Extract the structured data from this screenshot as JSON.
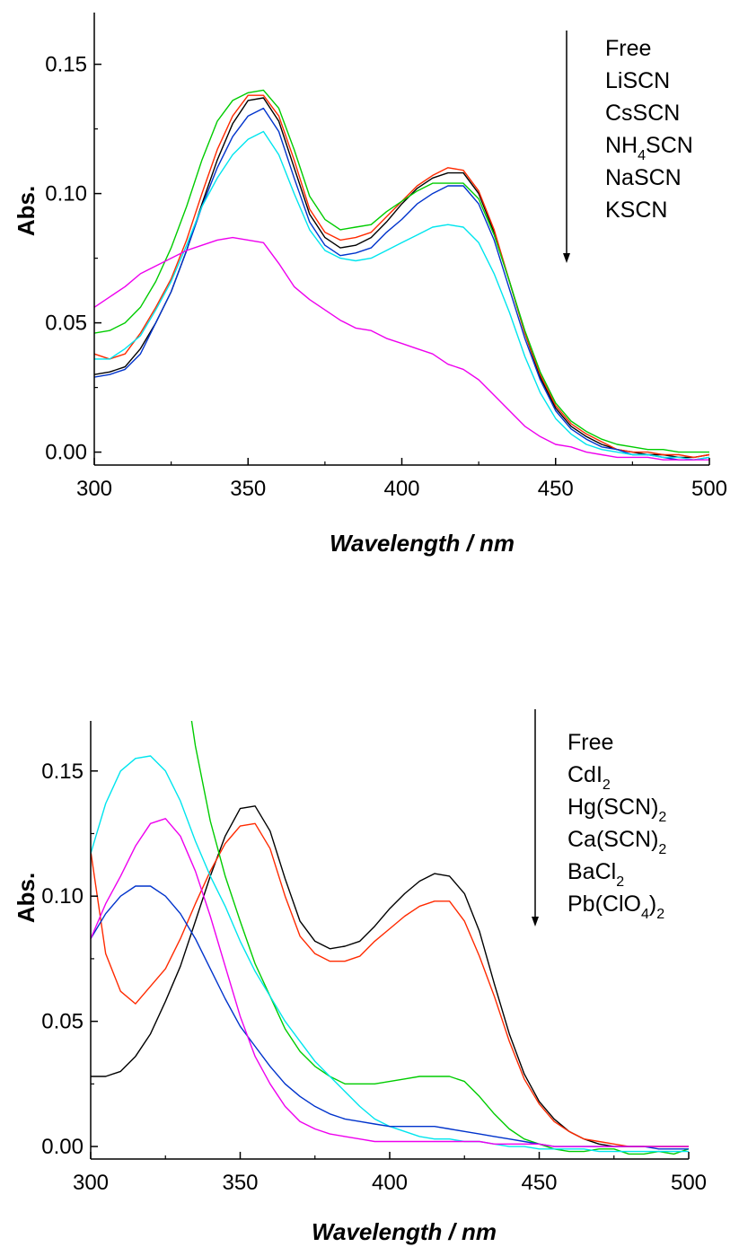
{
  "chart_data": [
    {
      "type": "line",
      "xlabel": "Wavelength / nm",
      "ylabel": "Abs.",
      "xlim": [
        300,
        500
      ],
      "ylim": [
        -0.005,
        0.17
      ],
      "x_ticks": [
        "300",
        "350",
        "400",
        "450",
        "500"
      ],
      "y_ticks": [
        "0.00",
        "0.05",
        "0.10",
        "0.15"
      ],
      "grid": false,
      "legend_position": "top-right",
      "legend": [
        {
          "text": "Free"
        },
        {
          "text": "LiSCN"
        },
        {
          "text": "CsSCN"
        },
        {
          "text": "NH",
          "sub": "4",
          "text2": "SCN"
        },
        {
          "text": "NaSCN"
        },
        {
          "text": "KSCN"
        }
      ],
      "x": [
        300,
        305,
        310,
        315,
        320,
        325,
        330,
        335,
        340,
        345,
        350,
        355,
        360,
        365,
        370,
        375,
        380,
        385,
        390,
        395,
        400,
        405,
        410,
        415,
        420,
        425,
        430,
        435,
        440,
        445,
        450,
        455,
        460,
        465,
        470,
        475,
        480,
        485,
        490,
        495,
        500
      ],
      "series": [
        {
          "color": "#000000",
          "values": [
            0.03,
            0.031,
            0.033,
            0.04,
            0.05,
            0.062,
            0.078,
            0.096,
            0.113,
            0.127,
            0.136,
            0.137,
            0.128,
            0.11,
            0.092,
            0.083,
            0.079,
            0.08,
            0.083,
            0.089,
            0.096,
            0.102,
            0.106,
            0.108,
            0.108,
            0.1,
            0.085,
            0.066,
            0.046,
            0.029,
            0.017,
            0.01,
            0.006,
            0.003,
            0.001,
            0.0,
            -0.001,
            -0.001,
            -0.002,
            -0.002,
            -0.001
          ]
        },
        {
          "color": "#ff2a00",
          "values": [
            0.038,
            0.036,
            0.038,
            0.046,
            0.056,
            0.067,
            0.082,
            0.1,
            0.117,
            0.13,
            0.138,
            0.138,
            0.13,
            0.113,
            0.094,
            0.085,
            0.082,
            0.083,
            0.085,
            0.091,
            0.097,
            0.103,
            0.107,
            0.11,
            0.109,
            0.101,
            0.086,
            0.066,
            0.046,
            0.03,
            0.018,
            0.011,
            0.007,
            0.004,
            0.001,
            0.0,
            0.0,
            -0.001,
            -0.001,
            -0.002,
            -0.001
          ]
        },
        {
          "color": "#00cc00",
          "values": [
            0.046,
            0.047,
            0.05,
            0.056,
            0.066,
            0.079,
            0.095,
            0.113,
            0.128,
            0.136,
            0.139,
            0.14,
            0.133,
            0.117,
            0.099,
            0.09,
            0.086,
            0.087,
            0.088,
            0.093,
            0.097,
            0.101,
            0.104,
            0.104,
            0.104,
            0.098,
            0.084,
            0.066,
            0.047,
            0.031,
            0.019,
            0.012,
            0.008,
            0.005,
            0.003,
            0.002,
            0.001,
            0.001,
            0.0,
            0.0,
            0.0
          ]
        },
        {
          "color": "#0033cc",
          "values": [
            0.029,
            0.03,
            0.032,
            0.038,
            0.05,
            0.062,
            0.078,
            0.095,
            0.11,
            0.122,
            0.13,
            0.133,
            0.124,
            0.106,
            0.089,
            0.08,
            0.076,
            0.077,
            0.079,
            0.085,
            0.09,
            0.096,
            0.1,
            0.103,
            0.103,
            0.096,
            0.082,
            0.063,
            0.044,
            0.028,
            0.016,
            0.009,
            0.005,
            0.002,
            0.001,
            -0.001,
            -0.001,
            -0.002,
            -0.003,
            -0.003,
            -0.002
          ]
        },
        {
          "color": "#00e5ee",
          "values": [
            0.036,
            0.036,
            0.04,
            0.045,
            0.055,
            0.066,
            0.08,
            0.095,
            0.106,
            0.115,
            0.121,
            0.124,
            0.115,
            0.1,
            0.086,
            0.078,
            0.075,
            0.074,
            0.075,
            0.078,
            0.081,
            0.084,
            0.087,
            0.088,
            0.087,
            0.081,
            0.069,
            0.054,
            0.037,
            0.023,
            0.013,
            0.007,
            0.003,
            0.001,
            0.0,
            -0.001,
            -0.001,
            -0.002,
            -0.002,
            -0.003,
            -0.002
          ]
        },
        {
          "color": "#ee00ee",
          "values": [
            0.056,
            0.06,
            0.064,
            0.069,
            0.072,
            0.075,
            0.078,
            0.08,
            0.082,
            0.083,
            0.082,
            0.081,
            0.073,
            0.064,
            0.059,
            0.055,
            0.051,
            0.048,
            0.047,
            0.044,
            0.042,
            0.04,
            0.038,
            0.034,
            0.032,
            0.028,
            0.022,
            0.016,
            0.01,
            0.006,
            0.003,
            0.002,
            0.0,
            -0.001,
            -0.002,
            -0.002,
            -0.002,
            -0.003,
            -0.003,
            -0.003,
            -0.003
          ]
        }
      ]
    },
    {
      "type": "line",
      "xlabel": "Wavelength / nm",
      "ylabel": "Abs.",
      "xlim": [
        300,
        500
      ],
      "ylim": [
        -0.005,
        0.17
      ],
      "x_ticks": [
        "300",
        "350",
        "400",
        "450",
        "500"
      ],
      "y_ticks": [
        "0.00",
        "0.05",
        "0.10",
        "0.15"
      ],
      "grid": false,
      "legend_position": "top-right",
      "legend": [
        {
          "text": "Free"
        },
        {
          "text": "CdI",
          "sub": "2"
        },
        {
          "text": "Hg(SCN)",
          "sub": "2"
        },
        {
          "text": "Ca(SCN)",
          "sub": "2"
        },
        {
          "text": "BaCl",
          "sub": "2"
        },
        {
          "text": "Pb(ClO",
          "sub": "4",
          "text2": ")",
          "sub2": "2"
        }
      ],
      "x": [
        300,
        305,
        310,
        315,
        320,
        325,
        330,
        335,
        340,
        345,
        350,
        355,
        360,
        365,
        370,
        375,
        380,
        385,
        390,
        395,
        400,
        405,
        410,
        415,
        420,
        425,
        430,
        435,
        440,
        445,
        450,
        455,
        460,
        465,
        470,
        475,
        480,
        485,
        490,
        495,
        500
      ],
      "series": [
        {
          "color": "#000000",
          "values": [
            0.028,
            0.028,
            0.03,
            0.036,
            0.045,
            0.058,
            0.072,
            0.09,
            0.108,
            0.124,
            0.135,
            0.136,
            0.126,
            0.107,
            0.09,
            0.082,
            0.079,
            0.08,
            0.082,
            0.088,
            0.095,
            0.101,
            0.106,
            0.109,
            0.108,
            0.101,
            0.086,
            0.065,
            0.045,
            0.029,
            0.018,
            0.011,
            0.006,
            0.003,
            0.001,
            0.0,
            0.0,
            0.0,
            0.0,
            0.0,
            0.0
          ]
        },
        {
          "color": "#ff2a00",
          "values": [
            0.118,
            0.077,
            0.062,
            0.057,
            0.064,
            0.071,
            0.083,
            0.097,
            0.11,
            0.121,
            0.128,
            0.129,
            0.119,
            0.1,
            0.084,
            0.077,
            0.074,
            0.074,
            0.076,
            0.082,
            0.087,
            0.092,
            0.096,
            0.098,
            0.098,
            0.09,
            0.076,
            0.06,
            0.042,
            0.027,
            0.017,
            0.01,
            0.006,
            0.003,
            0.002,
            0.001,
            0.0,
            0.0,
            0.0,
            0.0,
            0.0
          ]
        },
        {
          "color": "#00cc00",
          "values": [
            null,
            null,
            null,
            null,
            null,
            null,
            0.2,
            0.16,
            0.13,
            0.108,
            0.09,
            0.073,
            0.06,
            0.047,
            0.038,
            0.032,
            0.028,
            0.025,
            0.025,
            0.025,
            0.026,
            0.027,
            0.028,
            0.028,
            0.028,
            0.026,
            0.02,
            0.013,
            0.007,
            0.003,
            0.001,
            -0.001,
            -0.002,
            -0.002,
            -0.001,
            -0.001,
            -0.003,
            -0.003,
            -0.002,
            -0.003,
            -0.001
          ]
        },
        {
          "color": "#00e5ee",
          "values": [
            0.117,
            0.137,
            0.15,
            0.155,
            0.156,
            0.15,
            0.138,
            0.122,
            0.108,
            0.096,
            0.082,
            0.07,
            0.06,
            0.05,
            0.042,
            0.034,
            0.028,
            0.022,
            0.016,
            0.011,
            0.008,
            0.006,
            0.004,
            0.003,
            0.003,
            0.002,
            0.002,
            0.001,
            0.0,
            0.0,
            -0.001,
            -0.001,
            -0.001,
            -0.001,
            -0.002,
            -0.002,
            -0.002,
            -0.002,
            -0.002,
            -0.002,
            -0.002
          ]
        },
        {
          "color": "#0033cc",
          "values": [
            0.083,
            0.093,
            0.1,
            0.104,
            0.104,
            0.1,
            0.093,
            0.083,
            0.071,
            0.059,
            0.048,
            0.04,
            0.032,
            0.025,
            0.02,
            0.016,
            0.013,
            0.011,
            0.01,
            0.009,
            0.008,
            0.008,
            0.008,
            0.008,
            0.007,
            0.006,
            0.005,
            0.004,
            0.003,
            0.002,
            0.001,
            0.0,
            0.0,
            0.0,
            0.0,
            0.0,
            0.0,
            0.0,
            -0.001,
            -0.001,
            -0.001
          ]
        },
        {
          "color": "#ee00ee",
          "values": [
            0.083,
            0.097,
            0.108,
            0.12,
            0.129,
            0.131,
            0.124,
            0.11,
            0.092,
            0.072,
            0.052,
            0.036,
            0.025,
            0.016,
            0.01,
            0.007,
            0.005,
            0.004,
            0.003,
            0.002,
            0.002,
            0.002,
            0.002,
            0.002,
            0.002,
            0.002,
            0.002,
            0.001,
            0.001,
            0.001,
            0.001,
            0.0,
            0.0,
            0.0,
            0.0,
            0.0,
            0.0,
            0.0,
            0.0,
            0.0,
            0.0
          ]
        }
      ]
    }
  ]
}
